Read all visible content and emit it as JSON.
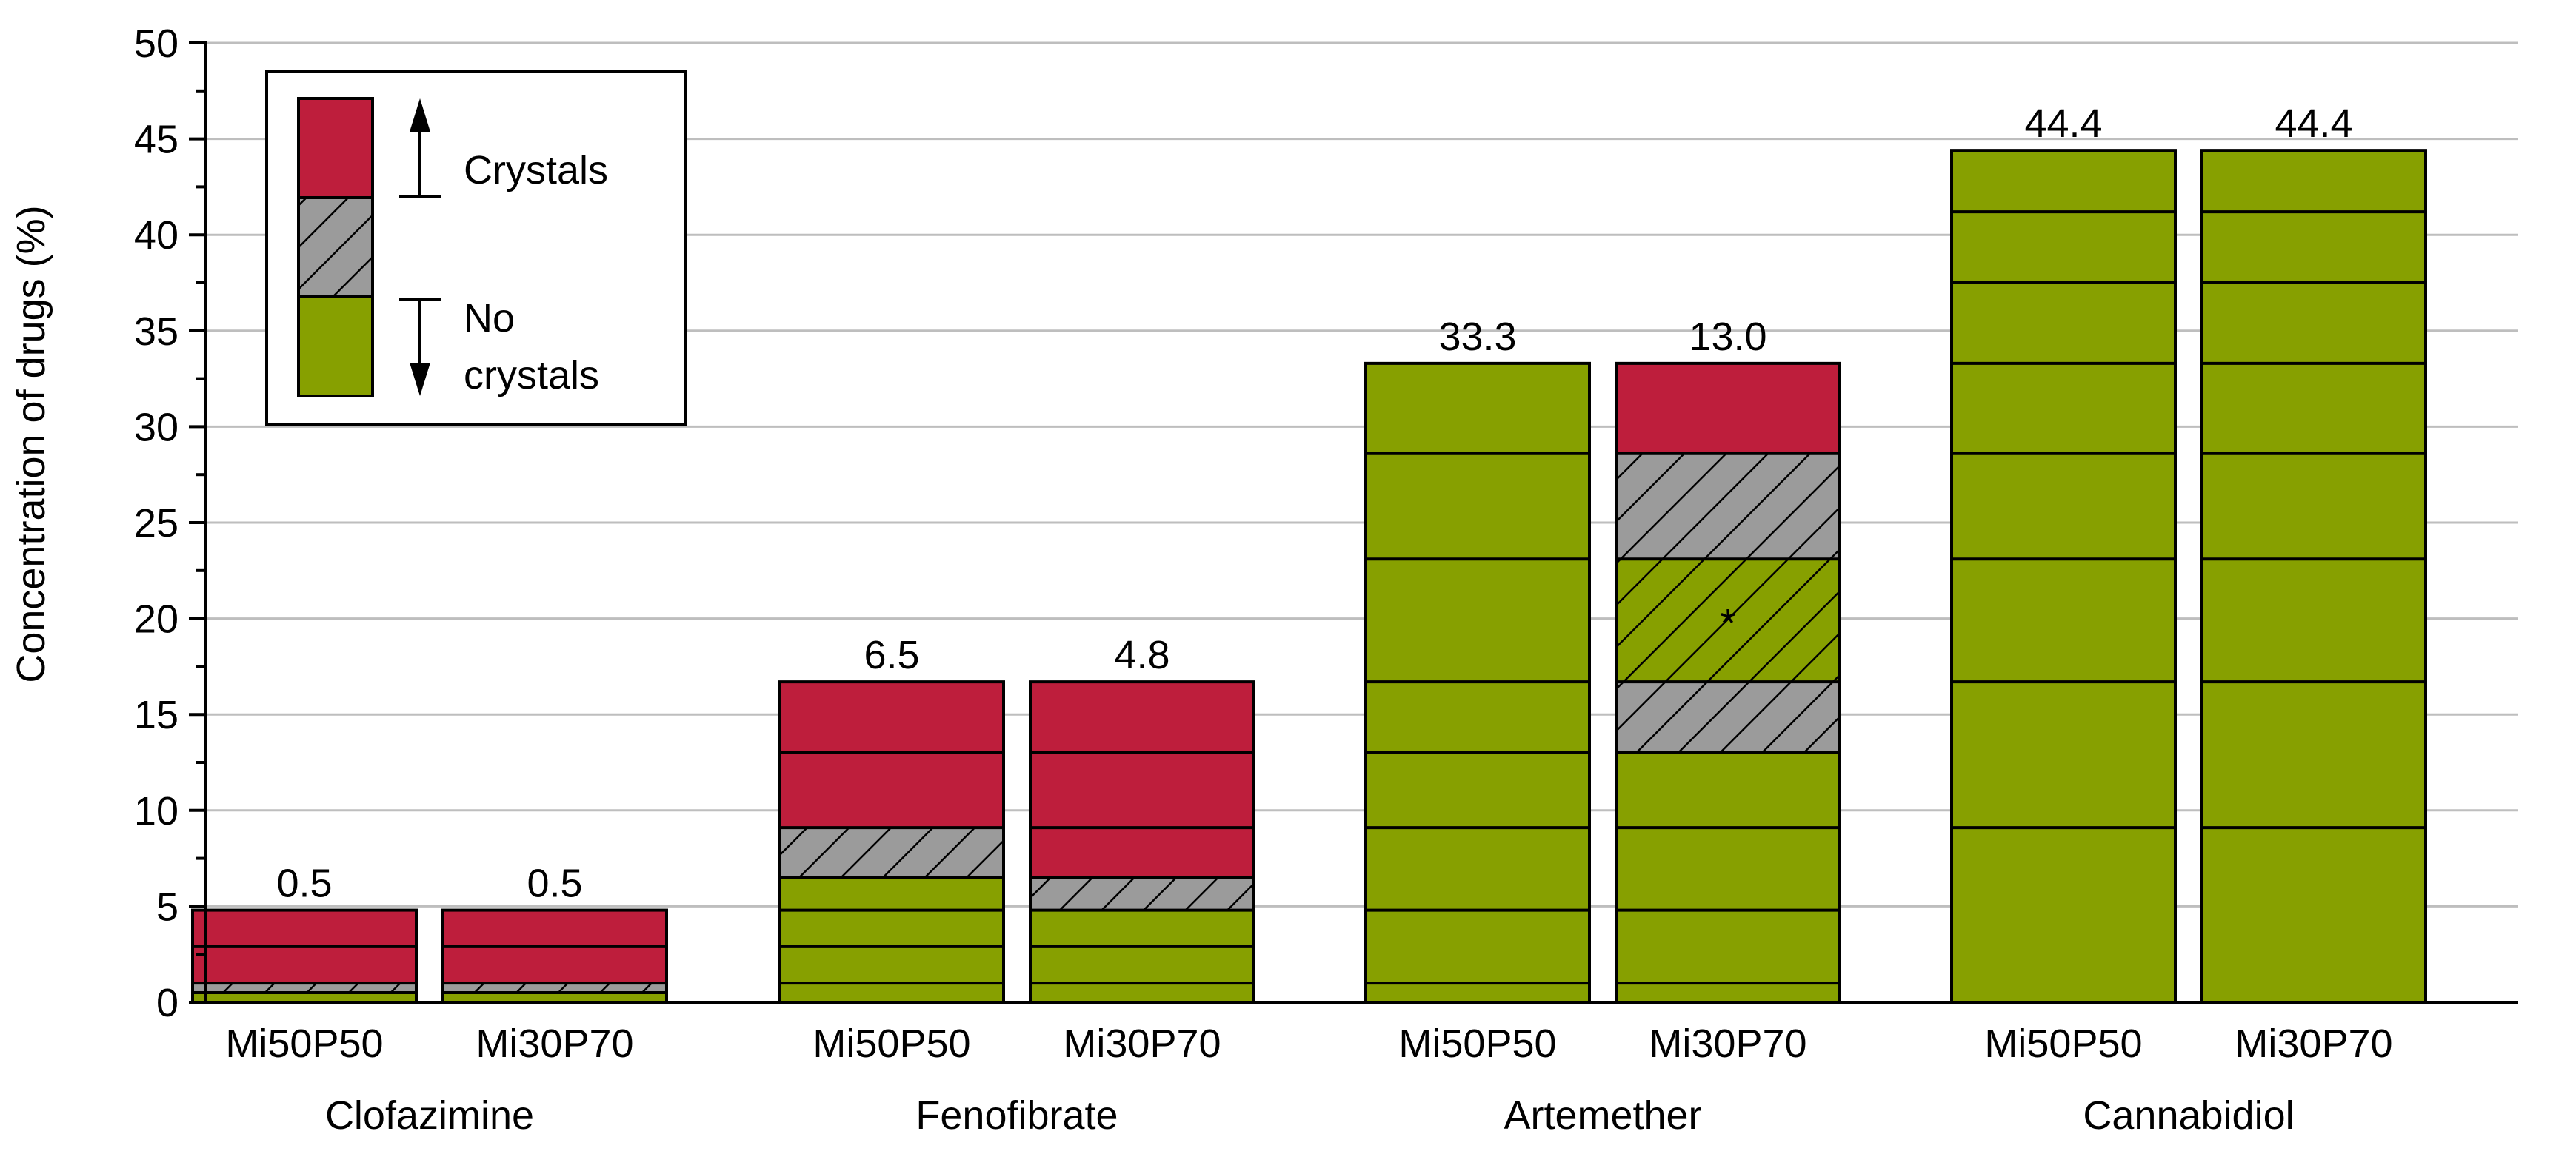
{
  "chart_data": {
    "type": "bar",
    "stacked": true,
    "ylabel": "Concentration of drugs (%)",
    "ylim": [
      0,
      50
    ],
    "y_ticks": [
      "0",
      "5",
      "10",
      "15",
      "20",
      "25",
      "30",
      "35",
      "40",
      "45",
      "50"
    ],
    "grid": true,
    "legend": {
      "position": "top-left",
      "labels": {
        "crystals": "Crystals",
        "no_crystals_line1": "No",
        "no_crystals_line2": "crystals"
      }
    },
    "colors": {
      "crystals": "#BE1E3C",
      "transition": "#9B9B9B",
      "no_crystals": "#87A000",
      "grid": "#BEBEBE",
      "outline": "#000000"
    },
    "groups": [
      {
        "drug": "Clofazimine",
        "bars": [
          {
            "formulation": "Mi50P50",
            "top_label": "0.5",
            "total": 4.8,
            "levels": [
              0.5,
              1.0,
              2.9
            ],
            "segments": [
              {
                "from": 0,
                "to": 0.5,
                "state": "no_crystals"
              },
              {
                "from": 0.5,
                "to": 1.0,
                "state": "transition"
              },
              {
                "from": 1.0,
                "to": 4.8,
                "state": "crystals"
              }
            ]
          },
          {
            "formulation": "Mi30P70",
            "top_label": "0.5",
            "total": 4.8,
            "levels": [
              0.5,
              1.0,
              2.9
            ],
            "segments": [
              {
                "from": 0,
                "to": 0.5,
                "state": "no_crystals"
              },
              {
                "from": 0.5,
                "to": 1.0,
                "state": "transition"
              },
              {
                "from": 1.0,
                "to": 4.8,
                "state": "crystals"
              }
            ]
          }
        ]
      },
      {
        "drug": "Fenofibrate",
        "bars": [
          {
            "formulation": "Mi50P50",
            "top_label": "6.5",
            "total": 16.7,
            "levels": [
              1.0,
              2.9,
              4.8,
              6.5,
              9.1,
              13.0
            ],
            "segments": [
              {
                "from": 0,
                "to": 6.5,
                "state": "no_crystals"
              },
              {
                "from": 6.5,
                "to": 9.1,
                "state": "transition"
              },
              {
                "from": 9.1,
                "to": 16.7,
                "state": "crystals"
              }
            ]
          },
          {
            "formulation": "Mi30P70",
            "top_label": "4.8",
            "total": 16.7,
            "levels": [
              1.0,
              2.9,
              4.8,
              6.5,
              9.1,
              13.0
            ],
            "segments": [
              {
                "from": 0,
                "to": 4.8,
                "state": "no_crystals"
              },
              {
                "from": 4.8,
                "to": 6.5,
                "state": "transition"
              },
              {
                "from": 6.5,
                "to": 16.7,
                "state": "crystals"
              }
            ]
          }
        ]
      },
      {
        "drug": "Artemether",
        "bars": [
          {
            "formulation": "Mi50P50",
            "top_label": "33.3",
            "total": 33.3,
            "levels": [
              1.0,
              4.8,
              9.1,
              13.0,
              16.7,
              23.1,
              28.6
            ],
            "segments": [
              {
                "from": 0,
                "to": 33.3,
                "state": "no_crystals"
              }
            ]
          },
          {
            "formulation": "Mi30P70",
            "top_label": "13.0",
            "total": 33.3,
            "levels": [
              1.0,
              4.8,
              9.1,
              13.0,
              16.7,
              23.1,
              28.6
            ],
            "segments": [
              {
                "from": 0,
                "to": 13.0,
                "state": "no_crystals"
              },
              {
                "from": 13.0,
                "to": 16.7,
                "state": "transition"
              },
              {
                "from": 16.7,
                "to": 23.1,
                "state": "no_crystals_hatched",
                "marker": "*"
              },
              {
                "from": 23.1,
                "to": 28.6,
                "state": "transition"
              },
              {
                "from": 28.6,
                "to": 33.3,
                "state": "crystals"
              }
            ]
          }
        ]
      },
      {
        "drug": "Cannabidiol",
        "bars": [
          {
            "formulation": "Mi50P50",
            "top_label": "44.4",
            "total": 44.4,
            "levels": [
              9.1,
              16.7,
              23.1,
              28.6,
              33.3,
              37.5,
              41.2
            ],
            "segments": [
              {
                "from": 0,
                "to": 44.4,
                "state": "no_crystals"
              }
            ]
          },
          {
            "formulation": "Mi30P70",
            "top_label": "44.4",
            "total": 44.4,
            "levels": [
              9.1,
              16.7,
              23.1,
              28.6,
              33.3,
              37.5,
              41.2
            ],
            "segments": [
              {
                "from": 0,
                "to": 44.4,
                "state": "no_crystals"
              }
            ]
          }
        ]
      }
    ]
  }
}
